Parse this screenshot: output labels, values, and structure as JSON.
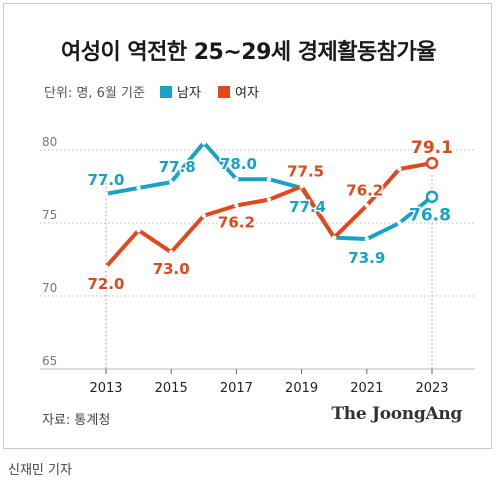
{
  "title": "여성이 역전한 25~29세 경제활동참가율",
  "subtitle": "단위: 명, 6월 기준",
  "source": "자료: 통계청",
  "logo": "The JoongAng",
  "credit": "신재민 기자",
  "colors": {
    "male": "#18a3c5",
    "female": "#e2481b",
    "grid": "#bbbbbb",
    "axis": "#888888"
  },
  "chart_data": {
    "type": "line",
    "title": "여성이 역전한 25~29세 경제활동참가율",
    "subtitle": "단위: 명, 6월 기준",
    "xlabel": "",
    "ylabel": "",
    "x": [
      2013,
      2014,
      2015,
      2016,
      2017,
      2018,
      2019,
      2020,
      2021,
      2022,
      2023
    ],
    "ylim": [
      65,
      80
    ],
    "yticks": [
      65,
      70,
      75,
      80
    ],
    "xticks": [
      2013,
      2015,
      2017,
      2019,
      2021,
      2023
    ],
    "grid": true,
    "legend": "top-left",
    "series": [
      {
        "name": "남자",
        "color": "#18a3c5",
        "values": [
          77.0,
          77.4,
          77.8,
          80.5,
          78.0,
          78.0,
          77.4,
          74.0,
          73.9,
          75.0,
          76.8
        ]
      },
      {
        "name": "여자",
        "color": "#e2481b",
        "values": [
          72.0,
          74.5,
          73.0,
          75.5,
          76.2,
          76.6,
          77.5,
          74.0,
          76.2,
          78.7,
          79.1
        ]
      }
    ],
    "annotations": [
      {
        "series": 0,
        "index": 0,
        "text": "77.0"
      },
      {
        "series": 0,
        "index": 2,
        "text": "77.8"
      },
      {
        "series": 0,
        "index": 4,
        "text": "78.0"
      },
      {
        "series": 0,
        "index": 6,
        "text": "77.4"
      },
      {
        "series": 0,
        "index": 8,
        "text": "73.9"
      },
      {
        "series": 0,
        "index": 10,
        "text": "76.8"
      },
      {
        "series": 1,
        "index": 0,
        "text": "72.0"
      },
      {
        "series": 1,
        "index": 2,
        "text": "73.0"
      },
      {
        "series": 1,
        "index": 4,
        "text": "76.2"
      },
      {
        "series": 1,
        "index": 6,
        "text": "77.5"
      },
      {
        "series": 1,
        "index": 8,
        "text": "76.2"
      },
      {
        "series": 1,
        "index": 10,
        "text": "79.1"
      }
    ]
  }
}
